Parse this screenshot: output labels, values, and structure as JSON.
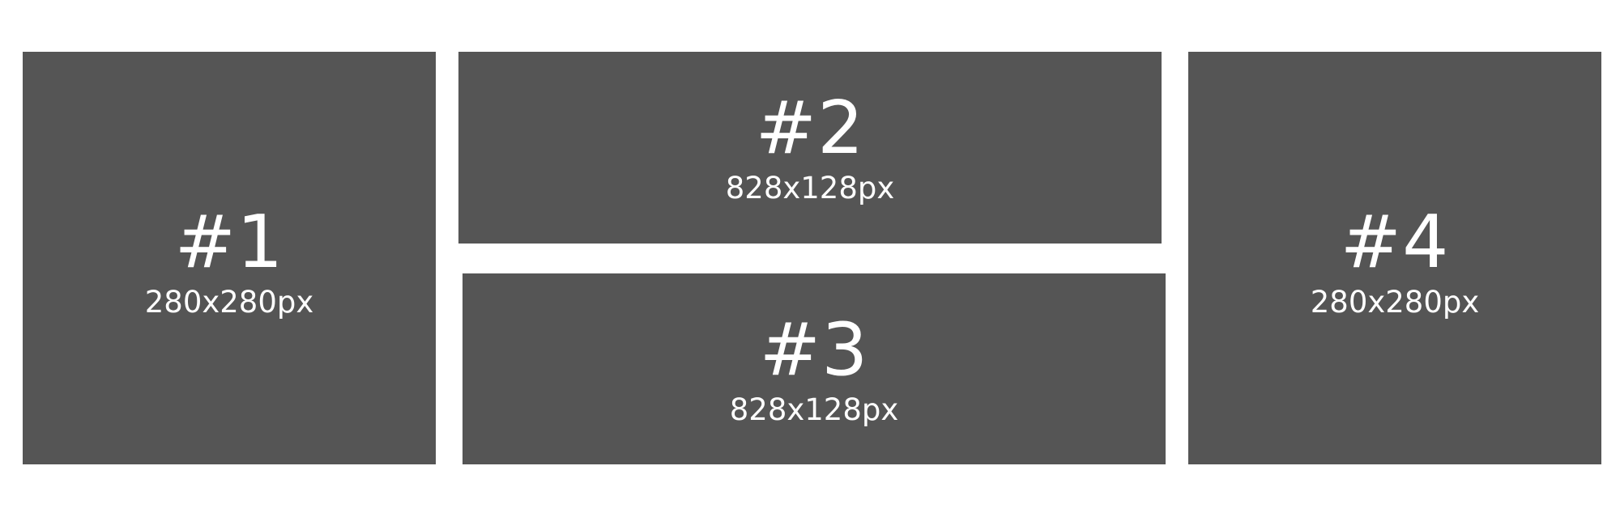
{
  "tiles": [
    {
      "number": "#1",
      "size": "280x280px"
    },
    {
      "number": "#2",
      "size": "828x128px"
    },
    {
      "number": "#3",
      "size": "828x128px"
    },
    {
      "number": "#4",
      "size": "280x280px"
    }
  ],
  "colors": {
    "background": "#ffffff",
    "tile": "#555555",
    "text": "#ffffff"
  }
}
